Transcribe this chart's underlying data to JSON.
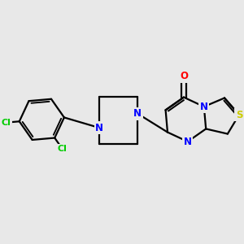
{
  "background_color": "#e8e8e8",
  "atom_colors": {
    "C": "#000000",
    "N": "#0000ff",
    "O": "#ff0000",
    "S": "#cccc00",
    "Cl": "#00cc00",
    "H": "#000000"
  },
  "bond_color": "#000000",
  "bond_width": 1.6,
  "font_size": 8.5,
  "figsize": [
    3.0,
    3.0
  ],
  "dpi": 100
}
